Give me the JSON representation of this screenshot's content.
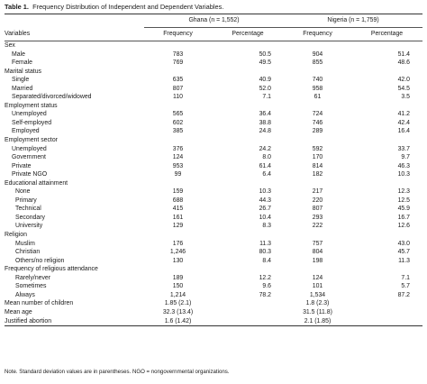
{
  "caption": {
    "label": "Table 1.",
    "text": "Frequency Distribution of Independent and Dependent Variables."
  },
  "groups": {
    "ghana": "Ghana (n = 1,552)",
    "nigeria": "Nigeria (n = 1,759)"
  },
  "columns": {
    "variables": "Variables",
    "frequency": "Frequency",
    "percentage": "Percentage"
  },
  "rows": [
    {
      "label": "Sex",
      "type": "section"
    },
    {
      "label": "Male",
      "type": "item",
      "g_freq": "783",
      "g_pct": "50.5",
      "n_freq": "904",
      "n_pct": "51.4"
    },
    {
      "label": "Female",
      "type": "item",
      "g_freq": "769",
      "g_pct": "49.5",
      "n_freq": "855",
      "n_pct": "48.6"
    },
    {
      "label": "Marital status",
      "type": "section"
    },
    {
      "label": "Single",
      "type": "item",
      "g_freq": "635",
      "g_pct": "40.9",
      "n_freq": "740",
      "n_pct": "42.0"
    },
    {
      "label": "Married",
      "type": "item",
      "g_freq": "807",
      "g_pct": "52.0",
      "n_freq": "958",
      "n_pct": "54.5"
    },
    {
      "label": "Separated/divorced/widowed",
      "type": "item",
      "g_freq": "110",
      "g_pct": "7.1",
      "n_freq": "61",
      "n_pct": "3.5"
    },
    {
      "label": "Employment status",
      "type": "section"
    },
    {
      "label": "Unemployed",
      "type": "item",
      "g_freq": "565",
      "g_pct": "36.4",
      "n_freq": "724",
      "n_pct": "41.2"
    },
    {
      "label": "Self-employed",
      "type": "item",
      "g_freq": "602",
      "g_pct": "38.8",
      "n_freq": "746",
      "n_pct": "42.4"
    },
    {
      "label": "Employed",
      "type": "item",
      "g_freq": "385",
      "g_pct": "24.8",
      "n_freq": "289",
      "n_pct": "16.4"
    },
    {
      "label": "Employment sector",
      "type": "section"
    },
    {
      "label": "Unemployed",
      "type": "item",
      "g_freq": "376",
      "g_pct": "24.2",
      "n_freq": "592",
      "n_pct": "33.7"
    },
    {
      "label": "Government",
      "type": "item",
      "g_freq": "124",
      "g_pct": "8.0",
      "n_freq": "170",
      "n_pct": "9.7"
    },
    {
      "label": "Private",
      "type": "item",
      "g_freq": "953",
      "g_pct": "61.4",
      "n_freq": "814",
      "n_pct": "46.3"
    },
    {
      "label": "Private NGO",
      "type": "item",
      "g_freq": "99",
      "g_pct": "6.4",
      "n_freq": "182",
      "n_pct": "10.3"
    },
    {
      "label": "Educational attainment",
      "type": "section"
    },
    {
      "label": "None",
      "type": "item2",
      "g_freq": "159",
      "g_pct": "10.3",
      "n_freq": "217",
      "n_pct": "12.3"
    },
    {
      "label": "Primary",
      "type": "item2",
      "g_freq": "688",
      "g_pct": "44.3",
      "n_freq": "220",
      "n_pct": "12.5"
    },
    {
      "label": "Technical",
      "type": "item2",
      "g_freq": "415",
      "g_pct": "26.7",
      "n_freq": "807",
      "n_pct": "45.9"
    },
    {
      "label": "Secondary",
      "type": "item2",
      "g_freq": "161",
      "g_pct": "10.4",
      "n_freq": "293",
      "n_pct": "16.7"
    },
    {
      "label": "University",
      "type": "item2",
      "g_freq": "129",
      "g_pct": "8.3",
      "n_freq": "222",
      "n_pct": "12.6"
    },
    {
      "label": "Religion",
      "type": "section"
    },
    {
      "label": "Muslim",
      "type": "item2",
      "g_freq": "176",
      "g_pct": "11.3",
      "n_freq": "757",
      "n_pct": "43.0"
    },
    {
      "label": "Christian",
      "type": "item2",
      "g_freq": "1,246",
      "g_pct": "80.3",
      "n_freq": "804",
      "n_pct": "45.7"
    },
    {
      "label": "Others/no religion",
      "type": "item2",
      "g_freq": "130",
      "g_pct": "8.4",
      "n_freq": "198",
      "n_pct": "11.3"
    },
    {
      "label": "Frequency of religious attendance",
      "type": "section"
    },
    {
      "label": "Rarely/never",
      "type": "item2",
      "g_freq": "189",
      "g_pct": "12.2",
      "n_freq": "124",
      "n_pct": "7.1"
    },
    {
      "label": "Sometimes",
      "type": "item2",
      "g_freq": "150",
      "g_pct": "9.6",
      "n_freq": "101",
      "n_pct": "5.7"
    },
    {
      "label": "Always",
      "type": "item2",
      "g_freq": "1,214",
      "g_pct": "78.2",
      "n_freq": "1,534",
      "n_pct": "87.2"
    },
    {
      "label": "Mean number of children",
      "type": "mean",
      "g_freq": "1.85 (2.1)",
      "n_freq": "1.8 (2.3)"
    },
    {
      "label": "Mean age",
      "type": "mean",
      "g_freq": "32.3 (13.4)",
      "n_freq": "31.5 (11.8)"
    },
    {
      "label": "Justified abortion",
      "type": "mean",
      "g_freq": "1.6 (1.42)",
      "n_freq": "2.1 (1.85)"
    }
  ],
  "note": "Note. Standard deviation values are in parentheses. NGO = nongovernmental organizations."
}
